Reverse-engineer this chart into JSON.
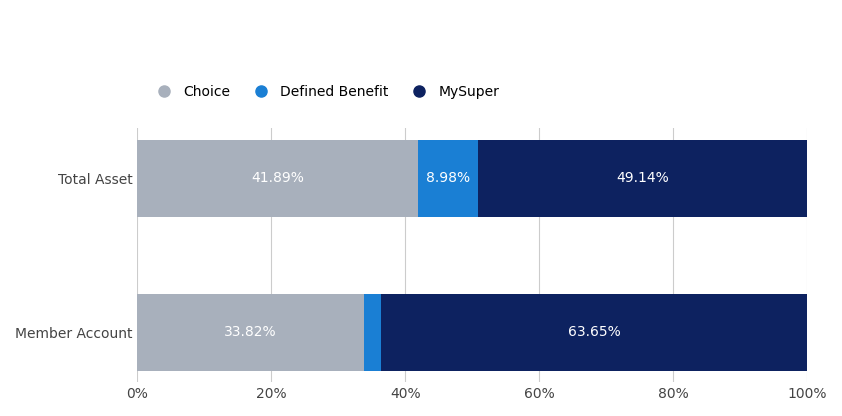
{
  "categories": [
    "Member Account",
    "Total Asset"
  ],
  "choice": [
    33.82,
    41.89
  ],
  "defined_benefit": [
    2.53,
    8.98
  ],
  "mysuper": [
    63.65,
    49.14
  ],
  "show_db_label": [
    false,
    true
  ],
  "colors": {
    "choice": "#a8b0bc",
    "defined_benefit": "#1a7fd4",
    "mysuper": "#0d2260"
  },
  "legend_labels": [
    "Choice",
    "Defined Benefit",
    "MySuper"
  ],
  "xlabel_ticks": [
    0,
    20,
    40,
    60,
    80,
    100
  ],
  "xlabel_tick_labels": [
    "0%",
    "20%",
    "40%",
    "60%",
    "80%",
    "100%"
  ],
  "background_color": "#ffffff",
  "grid_color": "#cccccc",
  "label_fontsize": 10,
  "tick_fontsize": 10,
  "legend_fontsize": 10,
  "bar_label_fontsize": 10,
  "bar_height": 0.5
}
